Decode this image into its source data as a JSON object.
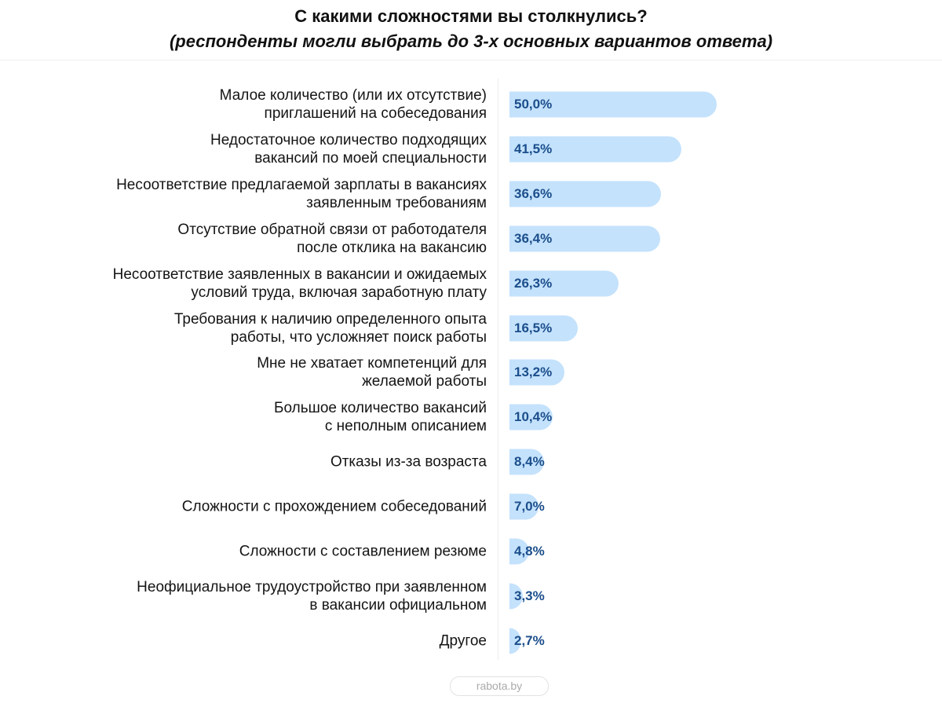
{
  "chart_data": {
    "type": "bar",
    "orientation": "horizontal",
    "title": "С какими сложностями вы столкнулись?",
    "subtitle": "(респонденты могли выбрать до 3-х основных вариантов ответа)",
    "xlabel": "",
    "ylabel": "",
    "xlim": [
      0,
      50
    ],
    "grid": false,
    "categories": [
      "Малое количество (или их отсутствие)\nприглашений на собеседования",
      "Недостаточное количество подходящих\nвакансий по моей специальности",
      "Несоответствие предлагаемой зарплаты в вакансиях\nзаявленным требованиям",
      "Отсутствие обратной связи от работодателя\nпосле отклика на вакансию",
      "Несоответствие заявленных в вакансии и ожидаемых\nусловий труда, включая заработную плату",
      "Требования к наличию определенного опыта\nработы, что усложняет поиск работы",
      "Мне не хватает компетенций для\nжелаемой работы",
      "Большое количество вакансий\nс неполным описанием",
      "Отказы из-за возраста",
      "Сложности с прохождением собеседований",
      "Сложности с составлением резюме",
      "Неофициальное трудоустройство при заявленном\nв вакансии официальном",
      "Другое"
    ],
    "values": [
      50.0,
      41.5,
      36.6,
      36.4,
      26.3,
      16.5,
      13.2,
      10.4,
      8.4,
      7.0,
      4.8,
      3.3,
      2.7
    ],
    "value_labels": [
      "50,0%",
      "41,5%",
      "36,6%",
      "36,4%",
      "26,3%",
      "16,5%",
      "13,2%",
      "10,4%",
      "8,4%",
      "7,0%",
      "4,8%",
      "3,3%",
      "2,7%"
    ]
  },
  "source": "rabota.by",
  "colors": {
    "bar": "#c4e2fc",
    "value_text": "#1b4e8b"
  }
}
